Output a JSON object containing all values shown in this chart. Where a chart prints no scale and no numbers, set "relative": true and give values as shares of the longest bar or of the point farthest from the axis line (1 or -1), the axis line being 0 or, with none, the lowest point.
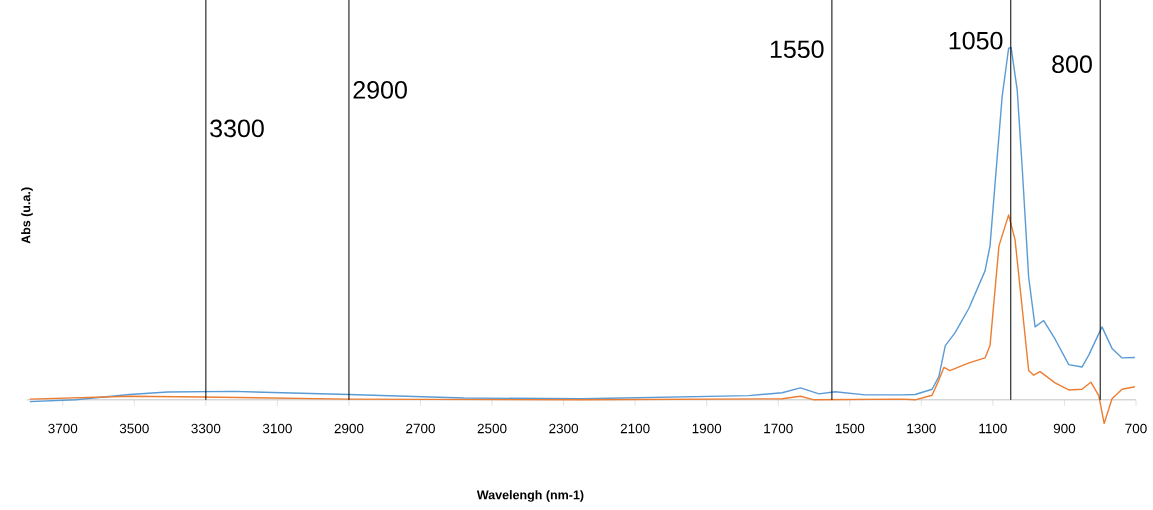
{
  "chart_data": {
    "type": "line",
    "relative": true,
    "xlabel": "Wavelengh (nm-1)",
    "ylabel": "Abs (u.a.)",
    "xlim": [
      3800,
      700
    ],
    "xticks": [
      3700,
      3500,
      3300,
      3100,
      2900,
      2700,
      2500,
      2300,
      2100,
      1900,
      1700,
      1500,
      1300,
      1100,
      900,
      700
    ],
    "series": [
      {
        "color": "#5b9bd5",
        "x": [
          3792,
          3664,
          3513,
          3407,
          3222,
          2901,
          2579,
          2247,
          1782,
          1689,
          1638,
          1586,
          1541,
          1457,
          1354,
          1317,
          1270,
          1251,
          1233,
          1206,
          1167,
          1122,
          1108,
          1094,
          1074,
          1056,
          1049,
          1032,
          1018,
          1000,
          982,
          958,
          926,
          888,
          851,
          832,
          795,
          767,
          739,
          703
        ],
        "values": [
          -0.005,
          0,
          0.015,
          0.022,
          0.024,
          0.015,
          0.005,
          0.003,
          0.012,
          0.02,
          0.034,
          0.017,
          0.023,
          0.014,
          0.014,
          0.015,
          0.03,
          0.066,
          0.154,
          0.19,
          0.26,
          0.366,
          0.437,
          0.613,
          0.862,
          0.998,
          1,
          0.879,
          0.658,
          0.348,
          0.207,
          0.225,
          0.172,
          0.1,
          0.093,
          0.127,
          0.207,
          0.146,
          0.119,
          0.12
        ]
      },
      {
        "color": "#ed7d31",
        "x": [
          3792,
          3513,
          3309,
          2901,
          2247,
          1689,
          1638,
          1600,
          1354,
          1317,
          1270,
          1251,
          1237,
          1220,
          1167,
          1122,
          1108,
          1083,
          1056,
          1038,
          1018,
          1000,
          986,
          968,
          926,
          888,
          851,
          826,
          804,
          789,
          767,
          739,
          703
        ],
        "values": [
          0.002,
          0.01,
          0.008,
          0.002,
          0,
          0.003,
          0.01,
          0,
          0.002,
          0,
          0.013,
          0.056,
          0.092,
          0.083,
          0.105,
          0.119,
          0.154,
          0.437,
          0.525,
          0.454,
          0.26,
          0.083,
          0.07,
          0.08,
          0.048,
          0.028,
          0.03,
          0.05,
          0.012,
          -0.067,
          0.003,
          0.03,
          0.037
        ]
      }
    ],
    "ref_lines": [
      {
        "axis": "x",
        "value": 3300,
        "label": "3300",
        "color": "#000000"
      },
      {
        "axis": "x",
        "value": 2900,
        "label": "2900",
        "color": "#000000"
      },
      {
        "axis": "x",
        "value": 1550,
        "label": "1550",
        "color": "#000000"
      },
      {
        "axis": "x",
        "value": 1050,
        "label": "1050",
        "color": "#000000"
      },
      {
        "axis": "x",
        "value": 800,
        "label": "800",
        "color": "#000000"
      }
    ]
  }
}
